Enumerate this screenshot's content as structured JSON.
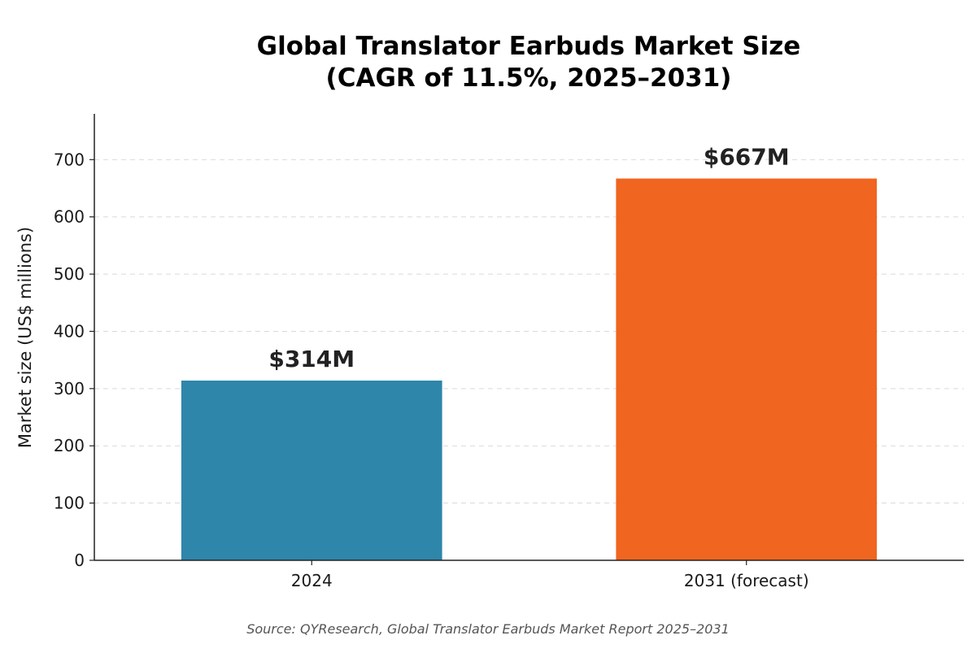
{
  "chart_data": {
    "type": "bar",
    "title": "Global Translator Earbuds Market Size",
    "subtitle": "(CAGR of 11.5%, 2025–2031)",
    "categories": [
      "2024",
      "2031 (forecast)"
    ],
    "values": [
      314,
      667
    ],
    "data_labels": [
      "$314M",
      "$667M"
    ],
    "bar_colors": [
      "#2e86ab",
      "#f0651f"
    ],
    "xlabel": "",
    "ylabel": "Market size (US$ millions)",
    "ylim": [
      0,
      780
    ],
    "yticks": [
      0,
      100,
      200,
      300,
      400,
      500,
      600,
      700
    ],
    "grid": "horizontal dashed",
    "source": "Source: QYResearch, Global Translator Earbuds Market Report 2025–2031"
  }
}
